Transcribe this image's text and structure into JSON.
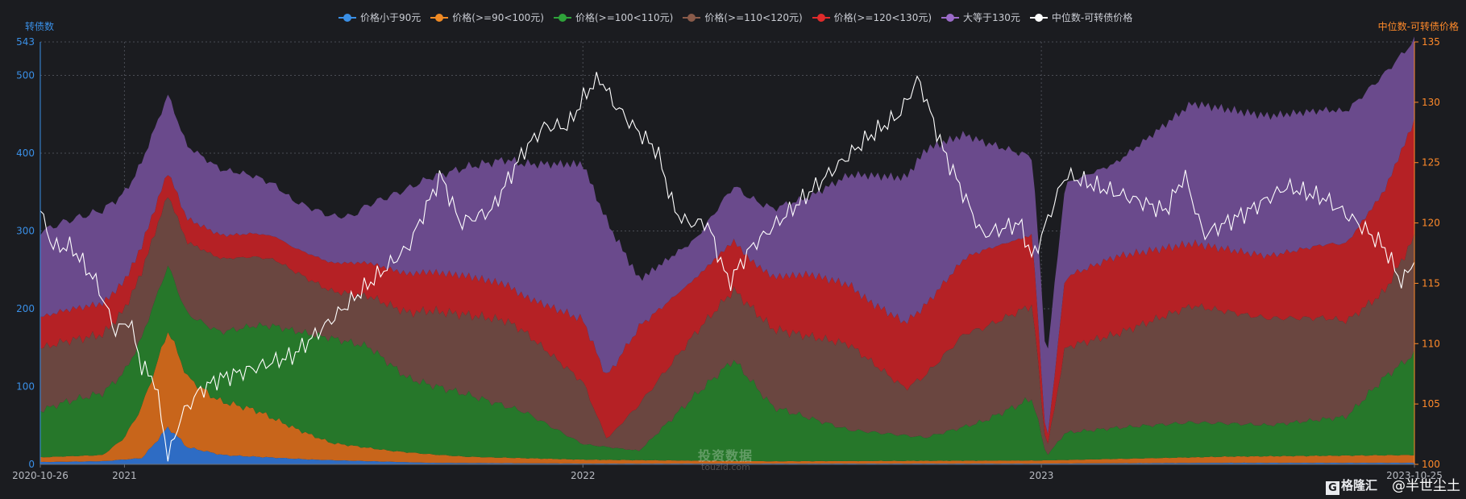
{
  "chart_data": {
    "type": "area",
    "y_left_label": "转债数",
    "y_right_label": "中位数-可转债价格",
    "x_start_label": "2020-10-26",
    "x_end_label": "2023-10-25",
    "x_range": [
      "2020-10-26",
      "2023-10-25"
    ],
    "x_ticks": [
      {
        "date": "2021-01-01",
        "label": "2021"
      },
      {
        "date": "2022-01-01",
        "label": "2022"
      },
      {
        "date": "2023-01-01",
        "label": "2023"
      }
    ],
    "y_left_range": [
      0,
      543
    ],
    "y_left_ticks": [
      0,
      100,
      200,
      300,
      400,
      500,
      543
    ],
    "y_right_range": [
      100,
      135
    ],
    "y_right_ticks": [
      100,
      105,
      110,
      115,
      120,
      125,
      130,
      135
    ],
    "grid": true,
    "legend_position": "top-center",
    "stacked_series": [
      {
        "name": "价格小于90元",
        "color": "#2e6cc4",
        "legend_color": "#3a8fe6",
        "points": [
          [
            "2020-10-26",
            3
          ],
          [
            "2020-12-15",
            4
          ],
          [
            "2021-01-15",
            8
          ],
          [
            "2021-02-05",
            48
          ],
          [
            "2021-02-20",
            22
          ],
          [
            "2021-03-20",
            12
          ],
          [
            "2021-06-01",
            6
          ],
          [
            "2021-09-01",
            2
          ],
          [
            "2022-01-01",
            1
          ],
          [
            "2022-06-01",
            1
          ],
          [
            "2023-01-01",
            1
          ],
          [
            "2023-06-01",
            2
          ],
          [
            "2023-10-25",
            2
          ]
        ]
      },
      {
        "name": "价格(>=90<100元)",
        "color": "#c8651b",
        "legend_color": "#f08a24",
        "points": [
          [
            "2020-10-26",
            6
          ],
          [
            "2020-12-15",
            8
          ],
          [
            "2021-01-01",
            28
          ],
          [
            "2021-01-20",
            80
          ],
          [
            "2021-02-05",
            125
          ],
          [
            "2021-02-20",
            90
          ],
          [
            "2021-03-15",
            70
          ],
          [
            "2021-04-15",
            60
          ],
          [
            "2021-05-15",
            40
          ],
          [
            "2021-06-15",
            22
          ],
          [
            "2021-08-01",
            14
          ],
          [
            "2021-10-01",
            8
          ],
          [
            "2022-01-01",
            5
          ],
          [
            "2022-06-01",
            3
          ],
          [
            "2023-01-01",
            4
          ],
          [
            "2023-06-01",
            8
          ],
          [
            "2023-10-25",
            10
          ]
        ]
      },
      {
        "name": "价格(>=100<110元)",
        "color": "#26772a",
        "legend_color": "#2fa23a",
        "points": [
          [
            "2020-10-26",
            60
          ],
          [
            "2020-11-15",
            70
          ],
          [
            "2020-12-15",
            80
          ],
          [
            "2021-01-20",
            90
          ],
          [
            "2021-02-15",
            80
          ],
          [
            "2021-03-20",
            90
          ],
          [
            "2021-05-01",
            120
          ],
          [
            "2021-06-15",
            135
          ],
          [
            "2021-07-15",
            130
          ],
          [
            "2021-08-15",
            95
          ],
          [
            "2021-10-01",
            80
          ],
          [
            "2021-11-15",
            60
          ],
          [
            "2022-01-01",
            20
          ],
          [
            "2022-02-15",
            12
          ],
          [
            "2022-04-01",
            85
          ],
          [
            "2022-05-01",
            130
          ],
          [
            "2022-06-01",
            70
          ],
          [
            "2022-08-01",
            40
          ],
          [
            "2022-10-01",
            30
          ],
          [
            "2022-11-15",
            50
          ],
          [
            "2022-12-25",
            80
          ],
          [
            "2023-01-05",
            5
          ],
          [
            "2023-01-20",
            35
          ],
          [
            "2023-03-01",
            40
          ],
          [
            "2023-05-01",
            45
          ],
          [
            "2023-07-01",
            40
          ],
          [
            "2023-09-01",
            50
          ],
          [
            "2023-10-01",
            100
          ],
          [
            "2023-10-25",
            130
          ]
        ]
      },
      {
        "name": "价格(>=110<120元)",
        "color": "#6a4640",
        "legend_color": "#8a5b4a",
        "points": [
          [
            "2020-10-26",
            80
          ],
          [
            "2020-12-15",
            75
          ],
          [
            "2021-02-01",
            90
          ],
          [
            "2021-03-15",
            95
          ],
          [
            "2021-05-01",
            85
          ],
          [
            "2021-06-15",
            60
          ],
          [
            "2021-07-15",
            65
          ],
          [
            "2021-09-01",
            95
          ],
          [
            "2021-11-01",
            110
          ],
          [
            "2022-01-01",
            80
          ],
          [
            "2022-01-20",
            10
          ],
          [
            "2022-02-15",
            60
          ],
          [
            "2022-04-01",
            80
          ],
          [
            "2022-06-01",
            100
          ],
          [
            "2022-08-01",
            110
          ],
          [
            "2022-09-15",
            60
          ],
          [
            "2022-11-01",
            120
          ],
          [
            "2022-12-25",
            120
          ],
          [
            "2023-01-05",
            5
          ],
          [
            "2023-01-20",
            110
          ],
          [
            "2023-03-01",
            120
          ],
          [
            "2023-05-01",
            150
          ],
          [
            "2023-06-15",
            140
          ],
          [
            "2023-08-15",
            130
          ],
          [
            "2023-10-01",
            110
          ],
          [
            "2023-10-25",
            150
          ]
        ]
      },
      {
        "name": "价格(>=120<130元)",
        "color": "#b52125",
        "legend_color": "#e02b2b",
        "points": [
          [
            "2020-10-26",
            40
          ],
          [
            "2020-12-15",
            40
          ],
          [
            "2021-02-01",
            30
          ],
          [
            "2021-04-01",
            30
          ],
          [
            "2021-05-15",
            30
          ],
          [
            "2021-07-01",
            40
          ],
          [
            "2021-08-15",
            50
          ],
          [
            "2021-10-01",
            50
          ],
          [
            "2021-11-15",
            45
          ],
          [
            "2022-01-01",
            80
          ],
          [
            "2022-01-20",
            80
          ],
          [
            "2022-02-15",
            100
          ],
          [
            "2022-04-01",
            70
          ],
          [
            "2022-05-15",
            60
          ],
          [
            "2022-07-01",
            80
          ],
          [
            "2022-08-15",
            75
          ],
          [
            "2022-10-01",
            90
          ],
          [
            "2022-11-15",
            100
          ],
          [
            "2022-12-25",
            90
          ],
          [
            "2023-01-05",
            5
          ],
          [
            "2023-01-20",
            90
          ],
          [
            "2023-03-01",
            100
          ],
          [
            "2023-05-01",
            80
          ],
          [
            "2023-07-01",
            80
          ],
          [
            "2023-09-01",
            100
          ],
          [
            "2023-10-01",
            130
          ],
          [
            "2023-10-25",
            150
          ]
        ]
      },
      {
        "name": "大等于130元",
        "color": "#6a4a8c",
        "legend_color": "#9b6bc9",
        "points": [
          [
            "2020-10-26",
            110
          ],
          [
            "2020-12-15",
            120
          ],
          [
            "2021-02-01",
            100
          ],
          [
            "2021-04-01",
            80
          ],
          [
            "2021-05-15",
            60
          ],
          [
            "2021-07-01",
            60
          ],
          [
            "2021-08-15",
            110
          ],
          [
            "2021-10-01",
            140
          ],
          [
            "2021-11-15",
            170
          ],
          [
            "2022-01-01",
            200
          ],
          [
            "2022-01-20",
            200
          ],
          [
            "2022-02-15",
            60
          ],
          [
            "2022-04-01",
            50
          ],
          [
            "2022-05-15",
            80
          ],
          [
            "2022-07-01",
            100
          ],
          [
            "2022-08-15",
            160
          ],
          [
            "2022-10-01",
            200
          ],
          [
            "2022-11-15",
            140
          ],
          [
            "2022-12-25",
            100
          ],
          [
            "2023-01-05",
            110
          ],
          [
            "2023-01-20",
            120
          ],
          [
            "2023-03-01",
            120
          ],
          [
            "2023-05-01",
            180
          ],
          [
            "2023-07-01",
            180
          ],
          [
            "2023-09-01",
            170
          ],
          [
            "2023-10-01",
            150
          ],
          [
            "2023-10-25",
            103
          ]
        ]
      }
    ],
    "line_series": {
      "name": "中位数-可转债价格",
      "color": "#ffffff",
      "axis": "right",
      "points": [
        [
          "2020-10-26",
          121
        ],
        [
          "2020-11-05",
          118
        ],
        [
          "2020-11-20",
          118
        ],
        [
          "2020-12-10",
          115
        ],
        [
          "2020-12-25",
          111
        ],
        [
          "2021-01-05",
          112
        ],
        [
          "2021-01-15",
          108
        ],
        [
          "2021-01-25",
          107
        ],
        [
          "2021-02-05",
          100.5
        ],
        [
          "2021-02-15",
          104
        ],
        [
          "2021-03-01",
          106
        ],
        [
          "2021-03-15",
          107
        ],
        [
          "2021-04-15",
          108
        ],
        [
          "2021-05-15",
          109
        ],
        [
          "2021-06-15",
          112
        ],
        [
          "2021-07-15",
          115
        ],
        [
          "2021-08-15",
          118
        ],
        [
          "2021-09-10",
          124
        ],
        [
          "2021-09-25",
          120
        ],
        [
          "2021-10-20",
          121
        ],
        [
          "2021-11-15",
          126
        ],
        [
          "2021-12-01",
          128
        ],
        [
          "2021-12-20",
          128
        ],
        [
          "2022-01-05",
          131
        ],
        [
          "2022-01-15",
          132
        ],
        [
          "2022-01-25",
          130
        ],
        [
          "2022-02-10",
          128
        ],
        [
          "2022-03-01",
          126
        ],
        [
          "2022-03-15",
          121
        ],
        [
          "2022-03-25",
          120
        ],
        [
          "2022-04-10",
          120
        ],
        [
          "2022-04-27",
          115
        ],
        [
          "2022-05-15",
          118
        ],
        [
          "2022-06-15",
          121
        ],
        [
          "2022-07-15",
          124
        ],
        [
          "2022-08-15",
          127
        ],
        [
          "2022-09-10",
          129
        ],
        [
          "2022-09-25",
          132
        ],
        [
          "2022-10-15",
          126
        ],
        [
          "2022-11-15",
          119
        ],
        [
          "2022-12-15",
          120
        ],
        [
          "2022-12-25",
          117
        ],
        [
          "2023-01-05",
          120
        ],
        [
          "2023-01-20",
          124
        ],
        [
          "2023-02-15",
          123
        ],
        [
          "2023-03-15",
          122
        ],
        [
          "2023-04-10",
          121
        ],
        [
          "2023-04-25",
          124
        ],
        [
          "2023-05-10",
          119
        ],
        [
          "2023-06-15",
          121
        ],
        [
          "2023-07-15",
          123
        ],
        [
          "2023-08-15",
          122
        ],
        [
          "2023-09-10",
          120
        ],
        [
          "2023-10-01",
          118
        ],
        [
          "2023-10-15",
          115
        ],
        [
          "2023-10-25",
          117
        ]
      ]
    }
  },
  "watermark": {
    "text": "投资数据",
    "sub": "touzid.com"
  },
  "brand": {
    "logo": "G",
    "name": "格隆汇",
    "signature": "@半世尘土"
  }
}
